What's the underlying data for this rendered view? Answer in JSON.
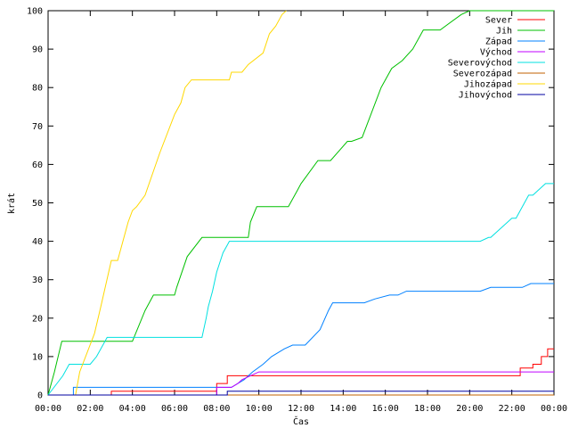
{
  "chart_data": {
    "type": "line",
    "title": "",
    "xlabel": "Čas",
    "ylabel": "krát",
    "xlim": [
      0,
      24
    ],
    "ylim": [
      0,
      100
    ],
    "x_ticks": [
      {
        "value": 0,
        "label": "00:00"
      },
      {
        "value": 2,
        "label": "02:00"
      },
      {
        "value": 4,
        "label": "04:00"
      },
      {
        "value": 6,
        "label": "06:00"
      },
      {
        "value": 8,
        "label": "08:00"
      },
      {
        "value": 10,
        "label": "10:00"
      },
      {
        "value": 12,
        "label": "12:00"
      },
      {
        "value": 14,
        "label": "14:00"
      },
      {
        "value": 16,
        "label": "16:00"
      },
      {
        "value": 18,
        "label": "18:00"
      },
      {
        "value": 20,
        "label": "20:00"
      },
      {
        "value": 22,
        "label": "22:00"
      },
      {
        "value": 24,
        "label": "00:00"
      }
    ],
    "y_ticks": [
      0,
      10,
      20,
      30,
      40,
      50,
      60,
      70,
      80,
      90,
      100
    ],
    "grid": false,
    "legend_position": "top-right",
    "series": [
      {
        "name": "Sever",
        "color": "#ff0000",
        "x": [
          0,
          3.0,
          3.0,
          8.0,
          8.0,
          8.5,
          8.5,
          22.4,
          22.4,
          23.0,
          23.0,
          23.4,
          23.4,
          23.7,
          23.7,
          24
        ],
        "y": [
          0,
          0,
          1,
          1,
          3,
          3,
          5,
          5,
          7,
          7,
          8,
          8,
          10,
          10,
          12,
          12
        ]
      },
      {
        "name": "Jih",
        "color": "#00c000",
        "x": [
          0,
          0.3,
          0.65,
          4.0,
          4.6,
          5.0,
          6.0,
          6.1,
          6.6,
          7.3,
          9.5,
          9.6,
          9.9,
          11.4,
          11.8,
          12.0,
          12.8,
          13.4,
          14.2,
          14.4,
          14.9,
          15.8,
          16.3,
          16.8,
          17.3,
          17.8,
          18.2,
          18.6,
          19.6,
          20.0,
          24
        ],
        "y": [
          0,
          6,
          14,
          14,
          22,
          26,
          26,
          28,
          36,
          41,
          41,
          45,
          49,
          49,
          53,
          55,
          61,
          61,
          66,
          66,
          67,
          80,
          85,
          87,
          90,
          95,
          95,
          95,
          99,
          100,
          100
        ]
      },
      {
        "name": "Západ",
        "color": "#0080ff",
        "x": [
          0,
          1.2,
          1.2,
          8.7,
          9.0,
          9.3,
          9.7,
          10.2,
          10.6,
          11.2,
          11.6,
          12.2,
          12.9,
          13.3,
          13.5,
          15.0,
          15.5,
          16.2,
          16.6,
          17.0,
          20.5,
          21.0,
          22.5,
          22.9,
          24
        ],
        "y": [
          0,
          0,
          2,
          2,
          3,
          4,
          6,
          8,
          10,
          12,
          13,
          13,
          17,
          22,
          24,
          24,
          25,
          26,
          26,
          27,
          27,
          28,
          28,
          29,
          29
        ]
      },
      {
        "name": "Východ",
        "color": "#c000ff",
        "x": [
          0,
          8.0,
          8.0,
          8.7,
          9.0,
          9.2,
          9.6,
          10.0,
          24
        ],
        "y": [
          0,
          0,
          2,
          2,
          3,
          4,
          5,
          6,
          6
        ]
      },
      {
        "name": "Severovýchod",
        "color": "#00e0e0",
        "x": [
          0,
          0.7,
          1.0,
          2.0,
          2.3,
          2.8,
          3.8,
          4.0,
          7.3,
          7.5,
          7.6,
          7.8,
          8.0,
          8.3,
          8.5,
          8.6,
          9.2,
          20.5,
          20.9,
          21.0,
          22.0,
          22.2,
          22.8,
          23.0,
          23.6,
          24
        ],
        "y": [
          0,
          5,
          8,
          8,
          10,
          15,
          15,
          15,
          15,
          20,
          23,
          27,
          32,
          37,
          39,
          40,
          40,
          40,
          41,
          41,
          46,
          46,
          52,
          52,
          55,
          55
        ]
      },
      {
        "name": "Severozápad",
        "color": "#c06000",
        "x": [
          0,
          24
        ],
        "y": [
          0,
          0
        ]
      },
      {
        "name": "Jihozápad",
        "color": "#ffd800",
        "x": [
          0,
          1.3,
          1.5,
          2.2,
          2.5,
          3.0,
          3.3,
          3.8,
          4.0,
          4.2,
          4.6,
          5.3,
          6.0,
          6.3,
          6.5,
          6.8,
          8.6,
          8.7,
          9.2,
          9.5,
          10.2,
          10.5,
          10.8,
          11.1,
          11.3
        ],
        "y": [
          0,
          0,
          6,
          16,
          23,
          35,
          35,
          45,
          48,
          49,
          52,
          63,
          73,
          76,
          80,
          82,
          82,
          84,
          84,
          86,
          89,
          94,
          96,
          99,
          100
        ]
      },
      {
        "name": "Jihovýchod",
        "color": "#0000a0",
        "x": [
          0,
          8.5,
          8.5,
          24
        ],
        "y": [
          0,
          0,
          1,
          1
        ]
      }
    ]
  }
}
